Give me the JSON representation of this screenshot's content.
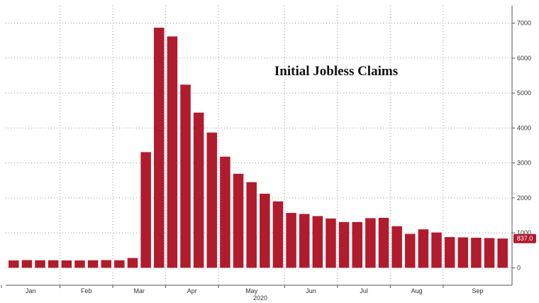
{
  "chart_data": {
    "type": "bar",
    "title": "Initial Jobless Claims",
    "xlabel": "2020",
    "ylabel": "",
    "ylim": [
      -500,
      7500
    ],
    "yticks": [
      0,
      1000,
      2000,
      3000,
      4000,
      5000,
      6000,
      7000
    ],
    "month_labels": [
      "Jan",
      "Feb",
      "Mar",
      "Apr",
      "May",
      "Jun",
      "Jul",
      "Aug",
      "Sep"
    ],
    "grid": true,
    "bar_color": "#b01c2e",
    "last_value_label": "837.0",
    "categories": [
      "Jan-1",
      "Jan-2",
      "Jan-3",
      "Jan-4",
      "Feb-1",
      "Feb-2",
      "Feb-3",
      "Feb-4",
      "Mar-1",
      "Mar-2",
      "Mar-3",
      "Mar-4",
      "Apr-1",
      "Apr-2",
      "Apr-3",
      "Apr-4",
      "May-1",
      "May-2",
      "May-3",
      "May-4",
      "May-5",
      "Jun-1",
      "Jun-2",
      "Jun-3",
      "Jun-4",
      "Jul-1",
      "Jul-2",
      "Jul-3",
      "Jul-4",
      "Aug-1",
      "Aug-2",
      "Aug-3",
      "Aug-4",
      "Sep-1",
      "Sep-2",
      "Sep-3",
      "Sep-4",
      "Sep-5"
    ],
    "values": [
      210,
      220,
      215,
      215,
      210,
      210,
      215,
      220,
      215,
      280,
      3310,
      6870,
      6620,
      5240,
      4440,
      3870,
      3180,
      2690,
      2450,
      2120,
      1900,
      1570,
      1540,
      1480,
      1410,
      1310,
      1310,
      1420,
      1430,
      1190,
      970,
      1100,
      1010,
      880,
      870,
      860,
      850,
      837
    ]
  }
}
